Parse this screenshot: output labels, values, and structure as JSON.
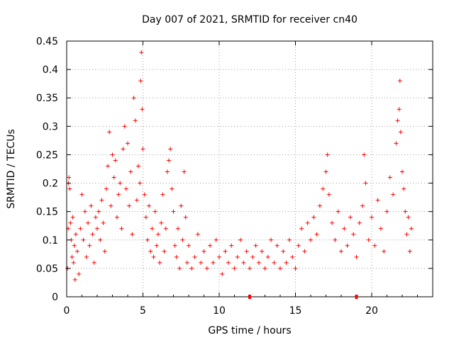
{
  "chart_data": {
    "type": "scatter",
    "title": "Day 007 of 2021, SRMTID for receiver cn40",
    "xlabel": "GPS time / hours",
    "ylabel": "SRMTID / TECUs",
    "xlim": [
      0,
      24
    ],
    "ylim": [
      0,
      0.45
    ],
    "xticks": [
      0,
      5,
      10,
      15,
      20
    ],
    "xtick_labels": [
      "0",
      "5",
      "10",
      "15",
      "20"
    ],
    "yticks": [
      0,
      0.05,
      0.1,
      0.15,
      0.2,
      0.25,
      0.3,
      0.35,
      0.4,
      0.45
    ],
    "ytick_labels": [
      "0",
      "0.05",
      "0.1",
      "0.15",
      "0.2",
      "0.25",
      "0.3",
      "0.35",
      "0.4",
      "0.45"
    ],
    "grid": true,
    "marker": "plus",
    "series_color": "#ff0000",
    "marker_color": "#ff0000",
    "baseline_markers": [
      12.0,
      19.0
    ],
    "series": [
      {
        "name": "SRMTID",
        "points": [
          [
            0.05,
            0.05
          ],
          [
            0.1,
            0.12
          ],
          [
            0.12,
            0.2
          ],
          [
            0.15,
            0.21
          ],
          [
            0.2,
            0.19
          ],
          [
            0.25,
            0.13
          ],
          [
            0.3,
            0.1
          ],
          [
            0.35,
            0.07
          ],
          [
            0.4,
            0.14
          ],
          [
            0.45,
            0.06
          ],
          [
            0.5,
            0.09
          ],
          [
            0.55,
            0.03
          ],
          [
            0.6,
            0.11
          ],
          [
            0.7,
            0.08
          ],
          [
            0.8,
            0.04
          ],
          [
            0.9,
            0.12
          ],
          [
            1.0,
            0.18
          ],
          [
            1.1,
            0.1
          ],
          [
            1.2,
            0.15
          ],
          [
            1.3,
            0.07
          ],
          [
            1.4,
            0.13
          ],
          [
            1.5,
            0.09
          ],
          [
            1.6,
            0.16
          ],
          [
            1.7,
            0.11
          ],
          [
            1.8,
            0.06
          ],
          [
            1.9,
            0.14
          ],
          [
            2.0,
            0.12
          ],
          [
            2.1,
            0.15
          ],
          [
            2.2,
            0.1
          ],
          [
            2.3,
            0.17
          ],
          [
            2.4,
            0.13
          ],
          [
            2.5,
            0.08
          ],
          [
            2.6,
            0.19
          ],
          [
            2.7,
            0.23
          ],
          [
            2.8,
            0.29
          ],
          [
            2.9,
            0.16
          ],
          [
            3.0,
            0.25
          ],
          [
            3.1,
            0.21
          ],
          [
            3.2,
            0.24
          ],
          [
            3.3,
            0.14
          ],
          [
            3.4,
            0.18
          ],
          [
            3.5,
            0.2
          ],
          [
            3.6,
            0.12
          ],
          [
            3.7,
            0.26
          ],
          [
            3.8,
            0.3
          ],
          [
            3.9,
            0.19
          ],
          [
            4.0,
            0.27
          ],
          [
            4.1,
            0.16
          ],
          [
            4.2,
            0.22
          ],
          [
            4.3,
            0.11
          ],
          [
            4.4,
            0.35
          ],
          [
            4.5,
            0.31
          ],
          [
            4.6,
            0.17
          ],
          [
            4.7,
            0.23
          ],
          [
            4.8,
            0.2
          ],
          [
            4.85,
            0.38
          ],
          [
            4.9,
            0.43
          ],
          [
            4.95,
            0.33
          ],
          [
            5.0,
            0.26
          ],
          [
            5.1,
            0.18
          ],
          [
            5.2,
            0.14
          ],
          [
            5.3,
            0.1
          ],
          [
            5.4,
            0.16
          ],
          [
            5.5,
            0.08
          ],
          [
            5.6,
            0.12
          ],
          [
            5.7,
            0.07
          ],
          [
            5.8,
            0.15
          ],
          [
            5.9,
            0.09
          ],
          [
            6.0,
            0.11
          ],
          [
            6.1,
            0.06
          ],
          [
            6.2,
            0.13
          ],
          [
            6.3,
            0.18
          ],
          [
            6.4,
            0.08
          ],
          [
            6.5,
            0.12
          ],
          [
            6.6,
            0.22
          ],
          [
            6.7,
            0.24
          ],
          [
            6.8,
            0.26
          ],
          [
            6.9,
            0.19
          ],
          [
            7.0,
            0.15
          ],
          [
            7.1,
            0.09
          ],
          [
            7.2,
            0.07
          ],
          [
            7.3,
            0.12
          ],
          [
            7.4,
            0.05
          ],
          [
            7.5,
            0.16
          ],
          [
            7.6,
            0.1
          ],
          [
            7.7,
            0.22
          ],
          [
            7.8,
            0.14
          ],
          [
            7.9,
            0.06
          ],
          [
            8.0,
            0.09
          ],
          [
            8.2,
            0.05
          ],
          [
            8.4,
            0.07
          ],
          [
            8.6,
            0.11
          ],
          [
            8.8,
            0.06
          ],
          [
            9.0,
            0.08
          ],
          [
            9.2,
            0.05
          ],
          [
            9.4,
            0.09
          ],
          [
            9.6,
            0.06
          ],
          [
            9.8,
            0.1
          ],
          [
            10.0,
            0.07
          ],
          [
            10.2,
            0.04
          ],
          [
            10.4,
            0.08
          ],
          [
            10.6,
            0.06
          ],
          [
            10.8,
            0.09
          ],
          [
            11.0,
            0.05
          ],
          [
            11.2,
            0.07
          ],
          [
            11.4,
            0.1
          ],
          [
            11.6,
            0.06
          ],
          [
            11.8,
            0.08
          ],
          [
            12.0,
            0.05
          ],
          [
            12.2,
            0.07
          ],
          [
            12.4,
            0.09
          ],
          [
            12.6,
            0.06
          ],
          [
            12.8,
            0.08
          ],
          [
            13.0,
            0.05
          ],
          [
            13.2,
            0.07
          ],
          [
            13.4,
            0.1
          ],
          [
            13.6,
            0.06
          ],
          [
            13.8,
            0.09
          ],
          [
            14.0,
            0.05
          ],
          [
            14.2,
            0.08
          ],
          [
            14.4,
            0.06
          ],
          [
            14.6,
            0.1
          ],
          [
            14.8,
            0.07
          ],
          [
            15.0,
            0.05
          ],
          [
            15.2,
            0.09
          ],
          [
            15.4,
            0.12
          ],
          [
            15.6,
            0.08
          ],
          [
            15.8,
            0.13
          ],
          [
            16.0,
            0.1
          ],
          [
            16.2,
            0.14
          ],
          [
            16.4,
            0.11
          ],
          [
            16.6,
            0.16
          ],
          [
            16.8,
            0.19
          ],
          [
            17.0,
            0.22
          ],
          [
            17.1,
            0.25
          ],
          [
            17.2,
            0.18
          ],
          [
            17.4,
            0.13
          ],
          [
            17.6,
            0.1
          ],
          [
            17.8,
            0.15
          ],
          [
            18.0,
            0.08
          ],
          [
            18.2,
            0.12
          ],
          [
            18.4,
            0.09
          ],
          [
            18.6,
            0.14
          ],
          [
            18.8,
            0.11
          ],
          [
            19.0,
            0.07
          ],
          [
            19.2,
            0.13
          ],
          [
            19.4,
            0.16
          ],
          [
            19.5,
            0.25
          ],
          [
            19.6,
            0.2
          ],
          [
            19.8,
            0.1
          ],
          [
            20.0,
            0.14
          ],
          [
            20.2,
            0.09
          ],
          [
            20.4,
            0.17
          ],
          [
            20.6,
            0.12
          ],
          [
            20.8,
            0.08
          ],
          [
            21.0,
            0.15
          ],
          [
            21.2,
            0.21
          ],
          [
            21.4,
            0.18
          ],
          [
            21.6,
            0.27
          ],
          [
            21.7,
            0.31
          ],
          [
            21.8,
            0.33
          ],
          [
            21.85,
            0.38
          ],
          [
            21.9,
            0.29
          ],
          [
            22.0,
            0.22
          ],
          [
            22.1,
            0.19
          ],
          [
            22.2,
            0.15
          ],
          [
            22.3,
            0.11
          ],
          [
            22.4,
            0.14
          ],
          [
            22.5,
            0.08
          ],
          [
            22.6,
            0.12
          ]
        ]
      }
    ]
  }
}
